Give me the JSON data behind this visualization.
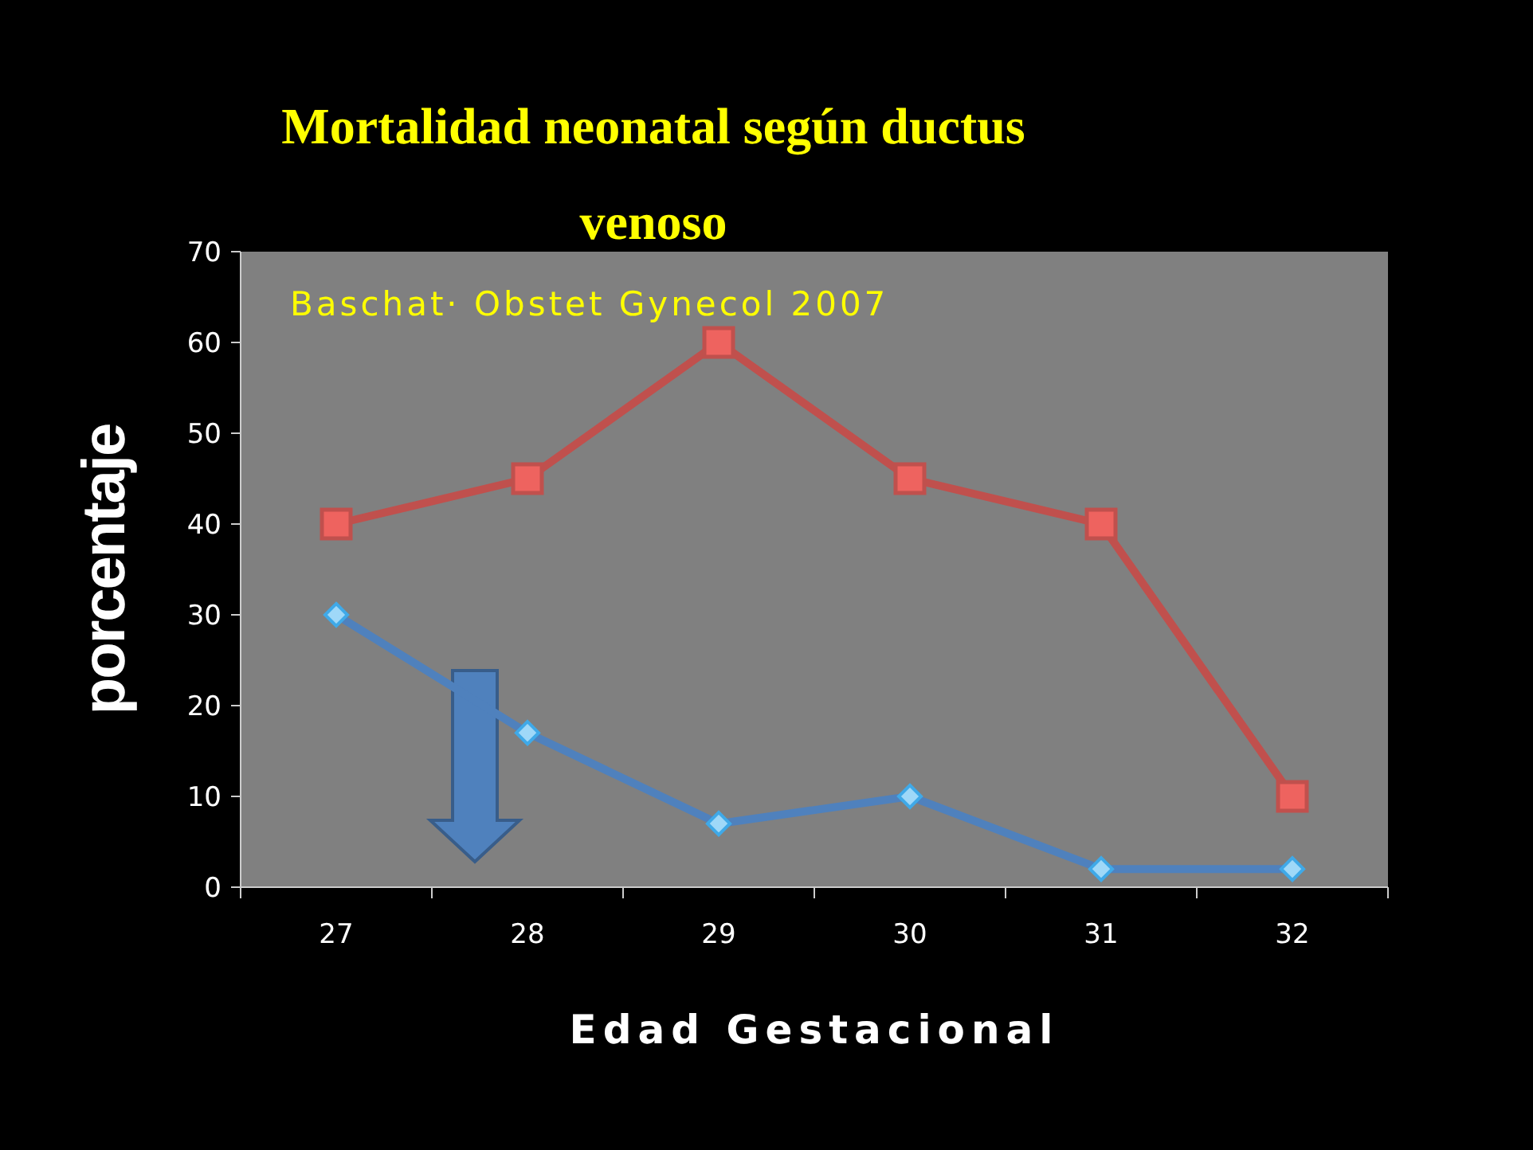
{
  "chart_data": {
    "type": "line",
    "title": "Mortalidad neonatal según ductus venoso",
    "xlabel": "Edad Gestacional",
    "ylabel": "porcentaje",
    "annotations": [
      "Baschat· Obstet Gynecol 2007"
    ],
    "categories": [
      "27",
      "28",
      "29",
      "30",
      "31",
      "32"
    ],
    "series": [
      {
        "color": "#c0504d",
        "marker": "square",
        "values": [
          40,
          45,
          60,
          45,
          40,
          10
        ]
      },
      {
        "color": "#4f81bd",
        "marker": "diamond",
        "values": [
          30,
          17,
          7,
          10,
          2,
          2
        ]
      }
    ],
    "ylim": [
      0,
      70
    ],
    "yticks": [
      0,
      10,
      20,
      30,
      40,
      50,
      60,
      70
    ]
  }
}
